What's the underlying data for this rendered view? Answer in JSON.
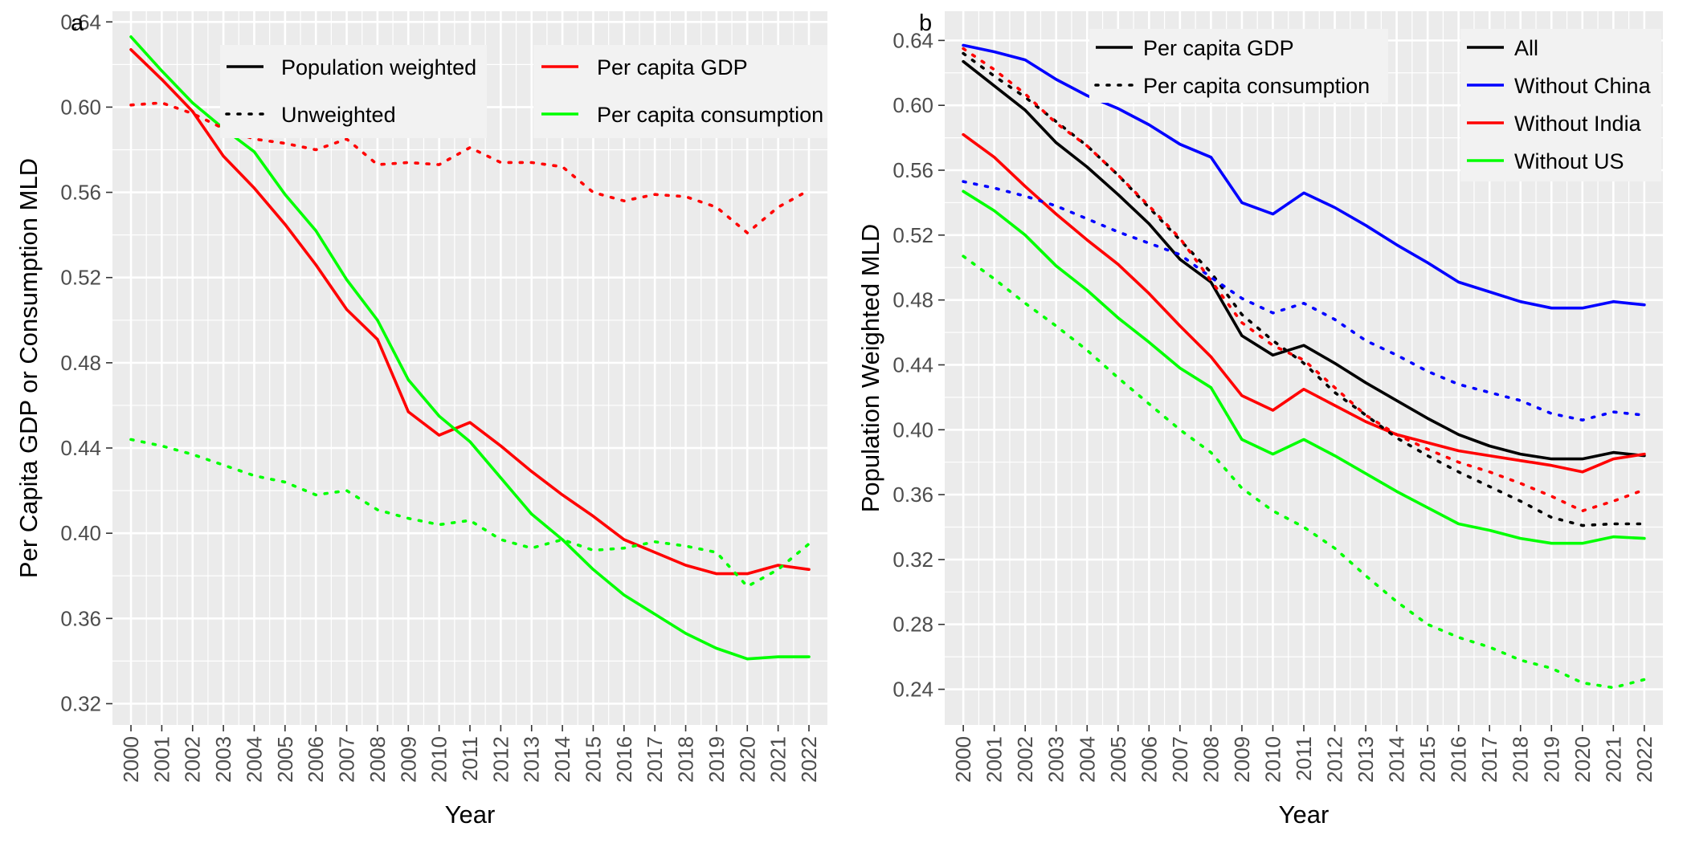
{
  "chart_data": [
    {
      "type": "line",
      "panel_label": "a",
      "xlabel": "Year",
      "ylabel": "Per Capita GDP or Consumption MLD",
      "x": [
        2000,
        2001,
        2002,
        2003,
        2004,
        2005,
        2006,
        2007,
        2008,
        2009,
        2010,
        2011,
        2012,
        2013,
        2014,
        2015,
        2016,
        2017,
        2018,
        2019,
        2020,
        2021,
        2022
      ],
      "ylim": [
        0.31,
        0.645
      ],
      "yticks": [
        0.32,
        0.36,
        0.4,
        0.44,
        0.48,
        0.52,
        0.56,
        0.6,
        0.64
      ],
      "grid": true,
      "legend_linetype": [
        {
          "label": "Population weighted",
          "dash": "solid"
        },
        {
          "label": "Unweighted",
          "dash": "dotted"
        }
      ],
      "legend_color": [
        {
          "label": "Per capita GDP",
          "color": "#ff0000"
        },
        {
          "label": "Per capita consumption",
          "color": "#00ff00"
        }
      ],
      "series": [
        {
          "color": "#ff0000",
          "dash": "solid",
          "values": [
            0.627,
            0.613,
            0.598,
            0.577,
            0.562,
            0.545,
            0.526,
            0.505,
            0.491,
            0.457,
            0.446,
            0.452,
            0.441,
            0.429,
            0.418,
            0.408,
            0.397,
            0.391,
            0.385,
            0.381,
            0.381,
            0.385,
            0.383
          ]
        },
        {
          "color": "#00ff00",
          "dash": "solid",
          "values": [
            0.633,
            0.617,
            0.602,
            0.59,
            0.579,
            0.559,
            0.542,
            0.519,
            0.5,
            0.472,
            0.455,
            0.443,
            0.426,
            0.409,
            0.397,
            0.383,
            0.371,
            0.362,
            0.353,
            0.346,
            0.341,
            0.342,
            0.342
          ]
        },
        {
          "color": "#ff0000",
          "dash": "dotted",
          "values": [
            0.601,
            0.602,
            0.597,
            0.59,
            0.585,
            0.583,
            0.58,
            0.585,
            0.573,
            0.574,
            0.573,
            0.581,
            0.574,
            0.574,
            0.572,
            0.56,
            0.556,
            0.559,
            0.558,
            0.553,
            0.541,
            0.553,
            0.561
          ]
        },
        {
          "color": "#00ff00",
          "dash": "dotted",
          "values": [
            0.444,
            0.441,
            0.437,
            0.432,
            0.427,
            0.424,
            0.418,
            0.42,
            0.411,
            0.407,
            0.404,
            0.406,
            0.397,
            0.393,
            0.397,
            0.392,
            0.393,
            0.396,
            0.394,
            0.391,
            0.375,
            0.383,
            0.395
          ]
        }
      ]
    },
    {
      "type": "line",
      "panel_label": "b",
      "xlabel": "Year",
      "ylabel": "Population Weighted MLD",
      "x": [
        2000,
        2001,
        2002,
        2003,
        2004,
        2005,
        2006,
        2007,
        2008,
        2009,
        2010,
        2011,
        2012,
        2013,
        2014,
        2015,
        2016,
        2017,
        2018,
        2019,
        2020,
        2021,
        2022
      ],
      "ylim": [
        0.218,
        0.658
      ],
      "yticks": [
        0.24,
        0.28,
        0.32,
        0.36,
        0.4,
        0.44,
        0.48,
        0.52,
        0.56,
        0.6,
        0.64
      ],
      "grid": true,
      "legend_linetype": [
        {
          "label": "Per capita GDP",
          "dash": "solid"
        },
        {
          "label": "Per capita consumption",
          "dash": "dotted"
        }
      ],
      "legend_color": [
        {
          "label": "All",
          "color": "#000000"
        },
        {
          "label": "Without China",
          "color": "#0000ff"
        },
        {
          "label": "Without India",
          "color": "#ff0000"
        },
        {
          "label": "Without US",
          "color": "#00ff00"
        }
      ],
      "series": [
        {
          "color": "#000000",
          "dash": "solid",
          "values": [
            0.627,
            0.612,
            0.597,
            0.577,
            0.562,
            0.545,
            0.527,
            0.505,
            0.491,
            0.458,
            0.446,
            0.452,
            0.441,
            0.429,
            0.418,
            0.407,
            0.397,
            0.39,
            0.385,
            0.382,
            0.382,
            0.386,
            0.384
          ]
        },
        {
          "color": "#0000ff",
          "dash": "solid",
          "values": [
            0.637,
            0.633,
            0.628,
            0.616,
            0.606,
            0.598,
            0.588,
            0.576,
            0.568,
            0.54,
            0.533,
            0.546,
            0.537,
            0.526,
            0.514,
            0.503,
            0.491,
            0.485,
            0.479,
            0.475,
            0.475,
            0.479,
            0.477
          ]
        },
        {
          "color": "#ff0000",
          "dash": "solid",
          "values": [
            0.582,
            0.568,
            0.55,
            0.533,
            0.517,
            0.502,
            0.484,
            0.464,
            0.445,
            0.421,
            0.412,
            0.425,
            0.415,
            0.405,
            0.397,
            0.392,
            0.387,
            0.384,
            0.381,
            0.378,
            0.374,
            0.382,
            0.385
          ]
        },
        {
          "color": "#00ff00",
          "dash": "solid",
          "values": [
            0.547,
            0.535,
            0.52,
            0.501,
            0.486,
            0.469,
            0.454,
            0.438,
            0.426,
            0.394,
            0.385,
            0.394,
            0.384,
            0.373,
            0.362,
            0.352,
            0.342,
            0.338,
            0.333,
            0.33,
            0.33,
            0.334,
            0.333
          ]
        },
        {
          "color": "#000000",
          "dash": "dotted",
          "values": [
            0.632,
            0.618,
            0.605,
            0.59,
            0.575,
            0.557,
            0.537,
            0.517,
            0.497,
            0.471,
            0.455,
            0.441,
            0.423,
            0.409,
            0.395,
            0.384,
            0.374,
            0.365,
            0.356,
            0.346,
            0.341,
            0.342,
            0.342
          ]
        },
        {
          "color": "#0000ff",
          "dash": "dotted",
          "values": [
            0.553,
            0.549,
            0.544,
            0.538,
            0.53,
            0.522,
            0.515,
            0.508,
            0.494,
            0.481,
            0.472,
            0.478,
            0.468,
            0.455,
            0.446,
            0.436,
            0.428,
            0.423,
            0.418,
            0.41,
            0.406,
            0.411,
            0.409
          ]
        },
        {
          "color": "#ff0000",
          "dash": "dotted",
          "values": [
            0.635,
            0.622,
            0.607,
            0.589,
            0.575,
            0.557,
            0.538,
            0.518,
            0.492,
            0.466,
            0.452,
            0.443,
            0.426,
            0.409,
            0.397,
            0.388,
            0.38,
            0.374,
            0.367,
            0.359,
            0.35,
            0.356,
            0.363
          ]
        },
        {
          "color": "#00ff00",
          "dash": "dotted",
          "values": [
            0.507,
            0.493,
            0.478,
            0.464,
            0.449,
            0.432,
            0.416,
            0.4,
            0.386,
            0.364,
            0.35,
            0.34,
            0.327,
            0.31,
            0.294,
            0.28,
            0.272,
            0.266,
            0.258,
            0.253,
            0.244,
            0.241,
            0.246
          ]
        }
      ]
    }
  ]
}
